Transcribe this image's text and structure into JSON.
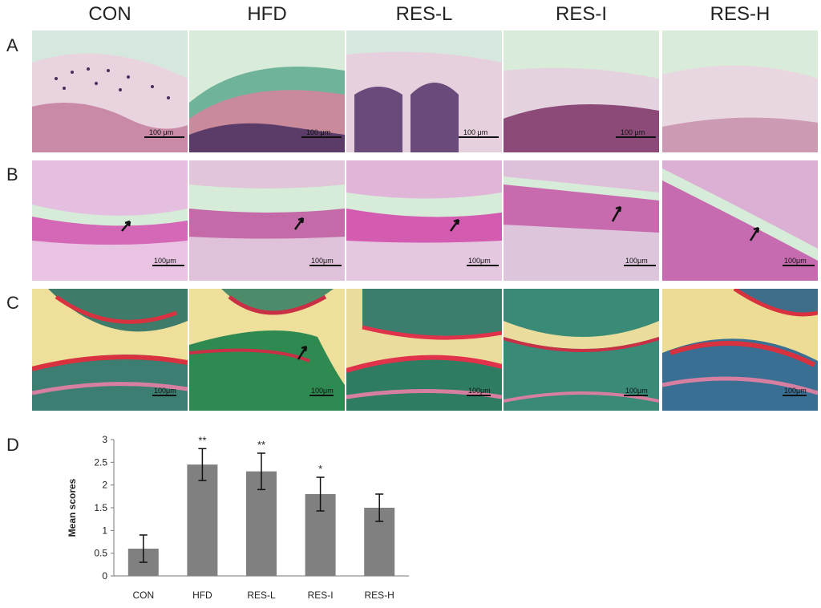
{
  "columns": [
    "CON",
    "HFD",
    "RES-L",
    "RES-I",
    "RES-H"
  ],
  "rows": [
    {
      "label": "A",
      "scale_label": "100 μm"
    },
    {
      "label": "B",
      "scale_label": "100μm"
    },
    {
      "label": "C",
      "scale_label": "100μm"
    }
  ],
  "panel_d_label": "D",
  "chart_data": {
    "type": "bar",
    "categories": [
      "CON",
      "HFD",
      "RES-L",
      "RES-I",
      "RES-H"
    ],
    "values": [
      0.6,
      2.45,
      2.3,
      1.8,
      1.5
    ],
    "errors": [
      0.3,
      0.35,
      0.4,
      0.37,
      0.3
    ],
    "significance": [
      "",
      "**",
      "**",
      "*",
      ""
    ],
    "ylabel": "Mean scores",
    "xlabel": "",
    "ylim": [
      0,
      3
    ],
    "yticks": [
      "0",
      "0.5",
      "1",
      "1.5",
      "2",
      "2.5",
      "3"
    ],
    "bar_color": "#808080",
    "grid": false
  },
  "colors": {
    "he_pink": "#e6c9d6",
    "pas_magenta": "#d05ab2",
    "safranin_red": "#d8313f",
    "fast_green": "#4a8c6a",
    "background_mint": "#d9ecd9"
  }
}
